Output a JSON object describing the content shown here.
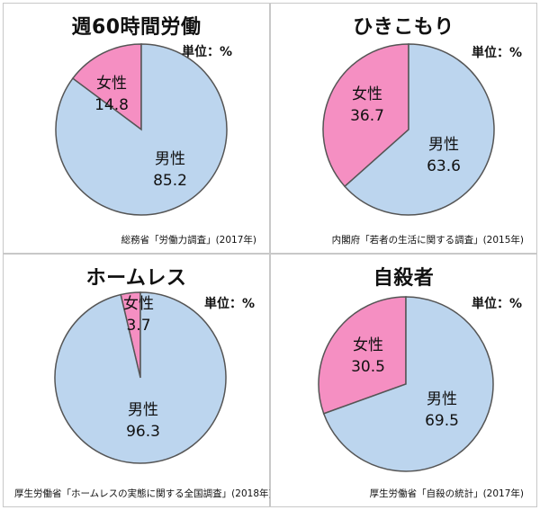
{
  "chart_data": [
    {
      "type": "pie",
      "title": "週60時間労働",
      "unit": "単位：%",
      "source": "総務省「労働力調査」(2017年)",
      "slices": [
        {
          "label": "女性",
          "value": 14.8,
          "value_text": "14.8",
          "color": "#f58fc2"
        },
        {
          "label": "男性",
          "value": 85.2,
          "value_text": "85.2",
          "color": "#bcd5ee"
        }
      ]
    },
    {
      "type": "pie",
      "title": "ひきこもり",
      "unit": "単位：%",
      "source": "内閣府「若者の生活に関する調査」(2015年)",
      "slices": [
        {
          "label": "女性",
          "value": 36.7,
          "value_text": "36.7",
          "color": "#f58fc2"
        },
        {
          "label": "男性",
          "value": 63.6,
          "value_text": "63.6",
          "color": "#bcd5ee"
        }
      ]
    },
    {
      "type": "pie",
      "title": "ホームレス",
      "unit": "単位：%",
      "source": "厚生労働省「ホームレスの実態に関する全国調査」(2018年)",
      "slices": [
        {
          "label": "女性",
          "value": 3.7,
          "value_text": "3.7",
          "color": "#f58fc2"
        },
        {
          "label": "男性",
          "value": 96.3,
          "value_text": "96.3",
          "color": "#bcd5ee"
        }
      ]
    },
    {
      "type": "pie",
      "title": "自殺者",
      "unit": "単位：%",
      "source": "厚生労働省「自殺の統計」(2017年)",
      "slices": [
        {
          "label": "女性",
          "value": 30.5,
          "value_text": "30.5",
          "color": "#f58fc2"
        },
        {
          "label": "男性",
          "value": 69.5,
          "value_text": "69.5",
          "color": "#bcd5ee"
        }
      ]
    }
  ]
}
